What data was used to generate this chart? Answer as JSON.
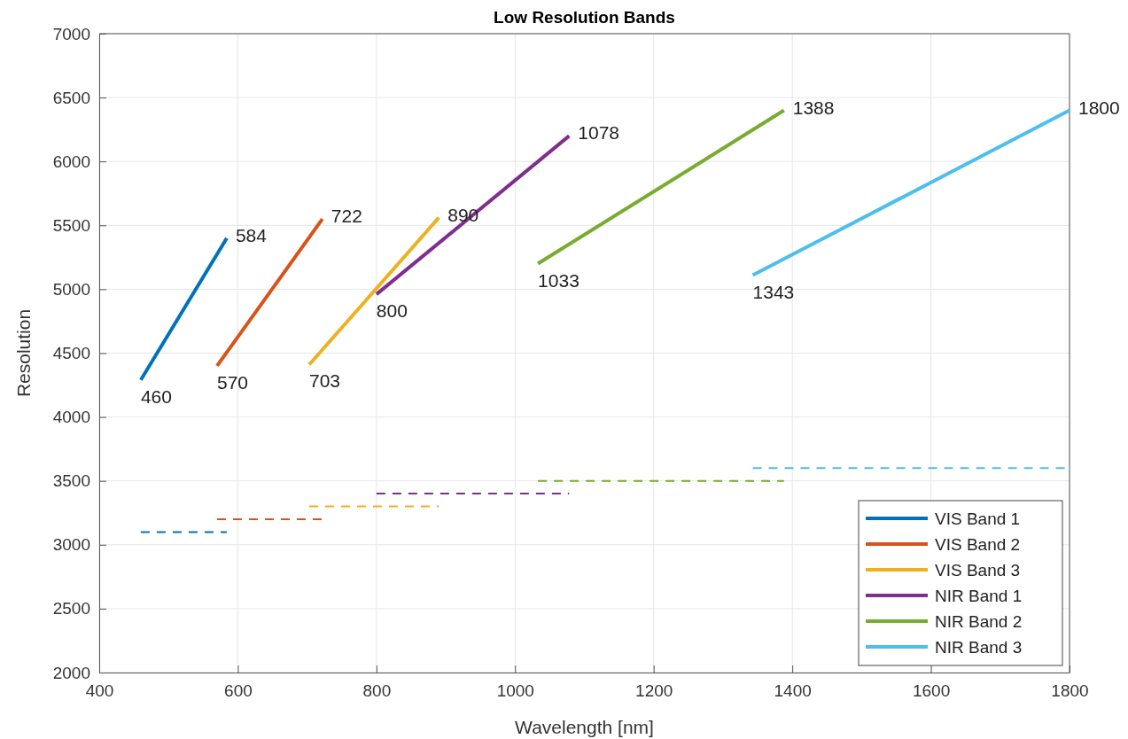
{
  "chart_data": {
    "type": "line",
    "title": "Low Resolution Bands",
    "xlabel": "Wavelength [nm]",
    "ylabel": "Resolution",
    "xlim": [
      400,
      1800
    ],
    "xticks": [
      400,
      600,
      800,
      1000,
      1200,
      1400,
      1600,
      1800
    ],
    "ylim": [
      2000,
      7000
    ],
    "yticks": [
      2000,
      2500,
      3000,
      3500,
      4000,
      4500,
      5000,
      5500,
      6000,
      6500,
      7000
    ],
    "grid": true,
    "legend": "bottom right",
    "marker": "none",
    "series": [
      {
        "name": "VIS Band 1",
        "color": "#0072bd",
        "x": [
          460,
          584
        ],
        "values": [
          4290,
          5400
        ],
        "line_style": "solid"
      },
      {
        "name": "VIS Band 2",
        "color": "#d95319",
        "x": [
          570,
          722
        ],
        "values": [
          4400,
          5550
        ],
        "line_style": "solid"
      },
      {
        "name": "VIS Band 3",
        "color": "#edb120",
        "x": [
          703,
          890
        ],
        "values": [
          4410,
          5560
        ],
        "line_style": "solid"
      },
      {
        "name": "NIR Band 1",
        "color": "#7e2f8e",
        "x": [
          800,
          1078
        ],
        "values": [
          4960,
          6200
        ],
        "line_style": "solid"
      },
      {
        "name": "NIR Band 2",
        "color": "#77ac30",
        "x": [
          1033,
          1388
        ],
        "values": [
          5200,
          6400
        ],
        "line_style": "solid"
      },
      {
        "name": "NIR Band 3",
        "color": "#4dbeee",
        "x": [
          1343,
          1800
        ],
        "values": [
          5110,
          6400
        ],
        "line_style": "solid"
      },
      {
        "color": "#0072bd",
        "x": [
          460,
          584
        ],
        "values": [
          3100,
          3100
        ],
        "line_style": "dashed"
      },
      {
        "color": "#d95319",
        "x": [
          570,
          722
        ],
        "values": [
          3200,
          3200
        ],
        "line_style": "dashed"
      },
      {
        "color": "#edb120",
        "x": [
          703,
          890
        ],
        "values": [
          3300,
          3300
        ],
        "line_style": "dashed"
      },
      {
        "color": "#7e2f8e",
        "x": [
          800,
          1078
        ],
        "values": [
          3400,
          3400
        ],
        "line_style": "dashed"
      },
      {
        "color": "#77ac30",
        "x": [
          1033,
          1388
        ],
        "values": [
          3500,
          3500
        ],
        "line_style": "dashed"
      },
      {
        "color": "#4dbeee",
        "x": [
          1343,
          1800
        ],
        "values": [
          3600,
          3600
        ],
        "line_style": "dashed"
      }
    ],
    "annotations": [
      {
        "text": "460",
        "x": 460,
        "y": 4290
      },
      {
        "text": "584",
        "x": 584,
        "y": 5400
      },
      {
        "text": "570",
        "x": 570,
        "y": 4400
      },
      {
        "text": "722",
        "x": 722,
        "y": 5550
      },
      {
        "text": "703",
        "x": 703,
        "y": 4410
      },
      {
        "text": "890",
        "x": 890,
        "y": 5560
      },
      {
        "text": "800",
        "x": 800,
        "y": 4960
      },
      {
        "text": "1078",
        "x": 1078,
        "y": 6200
      },
      {
        "text": "1033",
        "x": 1033,
        "y": 5200
      },
      {
        "text": "1388",
        "x": 1388,
        "y": 6400
      },
      {
        "text": "1343",
        "x": 1343,
        "y": 5110
      },
      {
        "text": "1800",
        "x": 1800,
        "y": 6400
      }
    ]
  }
}
